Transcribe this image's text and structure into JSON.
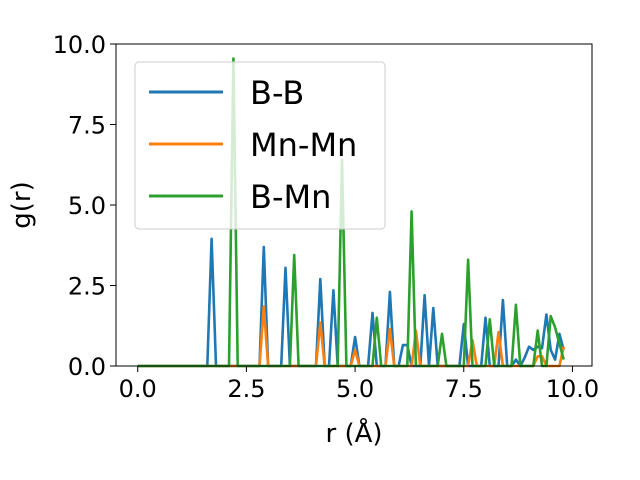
{
  "chart_data": {
    "type": "line",
    "xlabel": "r (Å)",
    "ylabel": "g(r)",
    "xlim": [
      -0.5,
      10.45
    ],
    "ylim": [
      0,
      10
    ],
    "x_ticks": [
      0.0,
      2.5,
      5.0,
      7.5,
      10.0
    ],
    "x_tick_labels": [
      "0.0",
      "2.5",
      "5.0",
      "7.5",
      "10.0"
    ],
    "y_ticks": [
      0.0,
      2.5,
      5.0,
      7.5,
      10.0
    ],
    "y_tick_labels": [
      "0.0",
      "2.5",
      "5.0",
      "7.5",
      "10.0"
    ],
    "grid": false,
    "legend_position": "upper-left",
    "series": [
      {
        "name": "B-B",
        "color": "#1f77b4",
        "peaks": [
          [
            1.6,
            0.0
          ],
          [
            1.7,
            3.95
          ],
          [
            1.8,
            0.0
          ],
          [
            2.8,
            0.0
          ],
          [
            2.9,
            3.7
          ],
          [
            3.0,
            0.0
          ],
          [
            3.3,
            0.0
          ],
          [
            3.4,
            3.05
          ],
          [
            3.5,
            0.0
          ],
          [
            4.1,
            0.0
          ],
          [
            4.2,
            2.7
          ],
          [
            4.3,
            0.0
          ],
          [
            4.4,
            0.0
          ],
          [
            4.5,
            2.35
          ],
          [
            4.6,
            0.0
          ],
          [
            4.9,
            0.0
          ],
          [
            5.0,
            0.9
          ],
          [
            5.1,
            0.0
          ],
          [
            5.3,
            0.0
          ],
          [
            5.4,
            1.65
          ],
          [
            5.5,
            0.0
          ],
          [
            5.7,
            0.0
          ],
          [
            5.8,
            2.3
          ],
          [
            5.9,
            0.0
          ],
          [
            6.0,
            0.0
          ],
          [
            6.1,
            0.65
          ],
          [
            6.2,
            0.65
          ],
          [
            6.3,
            0.0
          ],
          [
            6.5,
            0.0
          ],
          [
            6.6,
            2.2
          ],
          [
            6.7,
            0.0
          ],
          [
            6.8,
            1.8
          ],
          [
            6.9,
            0.0
          ],
          [
            7.4,
            0.0
          ],
          [
            7.5,
            1.3
          ],
          [
            7.6,
            0.0
          ],
          [
            7.9,
            0.0
          ],
          [
            8.0,
            1.5
          ],
          [
            8.1,
            0.0
          ],
          [
            8.3,
            0.0
          ],
          [
            8.4,
            2.05
          ],
          [
            8.5,
            0.0
          ],
          [
            8.6,
            0.0
          ],
          [
            8.7,
            0.2
          ],
          [
            8.8,
            0.0
          ],
          [
            8.9,
            0.25
          ],
          [
            9.0,
            0.6
          ],
          [
            9.1,
            0.5
          ],
          [
            9.2,
            0.6
          ],
          [
            9.3,
            0.55
          ],
          [
            9.4,
            1.6
          ],
          [
            9.5,
            0.5
          ],
          [
            9.6,
            0.2
          ],
          [
            9.7,
            1.0
          ],
          [
            9.8,
            0.5
          ]
        ]
      },
      {
        "name": "Mn-Mn",
        "color": "#ff7f0e",
        "peaks": [
          [
            2.8,
            0.0
          ],
          [
            2.9,
            1.85
          ],
          [
            3.0,
            0.0
          ],
          [
            4.1,
            0.0
          ],
          [
            4.2,
            1.35
          ],
          [
            4.3,
            0.0
          ],
          [
            4.9,
            0.0
          ],
          [
            5.0,
            0.5
          ],
          [
            5.1,
            0.0
          ],
          [
            5.7,
            0.0
          ],
          [
            5.8,
            1.15
          ],
          [
            5.9,
            0.0
          ],
          [
            6.3,
            0.0
          ],
          [
            6.4,
            1.1
          ],
          [
            6.5,
            0.0
          ],
          [
            7.6,
            0.0
          ],
          [
            7.7,
            0.8
          ],
          [
            7.8,
            0.0
          ],
          [
            8.2,
            0.0
          ],
          [
            8.3,
            1.05
          ],
          [
            8.4,
            0.0
          ],
          [
            9.1,
            0.0
          ],
          [
            9.2,
            0.3
          ],
          [
            9.3,
            0.3
          ],
          [
            9.4,
            0.0
          ],
          [
            9.7,
            0.0
          ],
          [
            9.8,
            0.6
          ],
          [
            9.9,
            0.0
          ]
        ]
      },
      {
        "name": "B-Mn",
        "color": "#2ca02c",
        "peaks": [
          [
            2.1,
            0.0
          ],
          [
            2.2,
            9.55
          ],
          [
            2.3,
            0.0
          ],
          [
            3.5,
            0.0
          ],
          [
            3.6,
            3.45
          ],
          [
            3.7,
            0.0
          ],
          [
            4.6,
            0.0
          ],
          [
            4.7,
            6.4
          ],
          [
            4.8,
            0.0
          ],
          [
            5.4,
            0.0
          ],
          [
            5.5,
            1.5
          ],
          [
            5.6,
            0.0
          ],
          [
            6.2,
            0.0
          ],
          [
            6.3,
            4.8
          ],
          [
            6.4,
            0.0
          ],
          [
            6.9,
            0.0
          ],
          [
            7.0,
            1.0
          ],
          [
            7.1,
            0.0
          ],
          [
            7.5,
            0.0
          ],
          [
            7.6,
            3.3
          ],
          [
            7.7,
            0.0
          ],
          [
            8.0,
            0.0
          ],
          [
            8.1,
            1.45
          ],
          [
            8.2,
            0.0
          ],
          [
            8.6,
            0.0
          ],
          [
            8.7,
            1.9
          ],
          [
            8.8,
            0.0
          ],
          [
            9.1,
            0.0
          ],
          [
            9.2,
            1.1
          ],
          [
            9.3,
            0.0
          ],
          [
            9.4,
            0.0
          ],
          [
            9.5,
            1.55
          ],
          [
            9.6,
            1.2
          ],
          [
            9.7,
            0.7
          ],
          [
            9.8,
            0.2
          ],
          [
            9.9,
            0.0
          ]
        ]
      }
    ]
  }
}
